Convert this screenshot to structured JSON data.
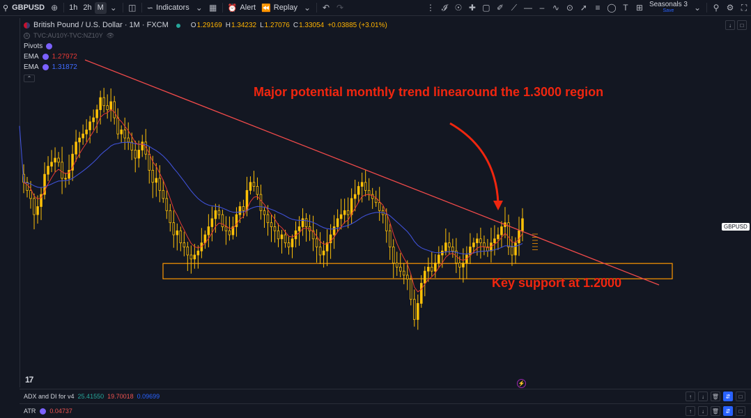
{
  "toolbar": {
    "symbol": "GBPUSD",
    "intervals": [
      "1h",
      "2h",
      "M"
    ],
    "indicators_label": "Indicators",
    "alert_label": "Alert",
    "replay_label": "Replay",
    "seasonals_label": "Seasonals 3",
    "seasonals_save": "Save"
  },
  "legend": {
    "title": "British Pound / U.S. Dollar · 1M · FXCM",
    "open_label": "O",
    "open": "1.29169",
    "high_label": "H",
    "high": "1.34232",
    "low_label": "L",
    "low": "1.27076",
    "close_label": "C",
    "close": "1.33054",
    "change": "+0.03885 (+3.01%)",
    "compare": "TVC:AU10Y-TVC:NZ10Y",
    "pivots_label": "Pivots",
    "ema1_label": "EMA",
    "ema1_value": "1.27972",
    "ema2_label": "EMA",
    "ema2_value": "1.31872"
  },
  "annotations": {
    "trendline_text": "Major potential monthly trend linearound the 1.3000 region",
    "support_text": "Key support at 1.2000"
  },
  "price_tag": "GBPUSD",
  "panes": {
    "adx_label": "ADX and DI for v4",
    "adx_v1": "25.41550",
    "adx_v2": "19.70018",
    "adx_v3": "0.09699",
    "atr_label": "ATR",
    "atr_value": "0.04737"
  },
  "colors": {
    "background": "#131722",
    "candle": "#ffc107",
    "ema_fast": "#e53935",
    "ema_slow": "#3f51d6",
    "trendline": "#f04a4a",
    "support_box": "#ff9800",
    "annotation": "#f0260f"
  },
  "chart_data": {
    "type": "candlestick",
    "symbol": "GBPUSD",
    "timeframe": "1M",
    "close_series": [
      1.42,
      1.4,
      1.38,
      1.34,
      1.36,
      1.39,
      1.44,
      1.46,
      1.47,
      1.48,
      1.47,
      1.43,
      1.43,
      1.45,
      1.49,
      1.52,
      1.53,
      1.54,
      1.55,
      1.57,
      1.58,
      1.6,
      1.63,
      1.61,
      1.6,
      1.62,
      1.58,
      1.54,
      1.55,
      1.53,
      1.52,
      1.5,
      1.48,
      1.5,
      1.52,
      1.49,
      1.45,
      1.42,
      1.43,
      1.4,
      1.38,
      1.35,
      1.32,
      1.29,
      1.3,
      1.27,
      1.26,
      1.24,
      1.23,
      1.24,
      1.25,
      1.27,
      1.29,
      1.31,
      1.33,
      1.35,
      1.34,
      1.31,
      1.3,
      1.29,
      1.31,
      1.34,
      1.36,
      1.35,
      1.4,
      1.42,
      1.41,
      1.39,
      1.35,
      1.34,
      1.32,
      1.31,
      1.3,
      1.28,
      1.29,
      1.27,
      1.26,
      1.28,
      1.3,
      1.31,
      1.33,
      1.31,
      1.3,
      1.28,
      1.26,
      1.24,
      1.25,
      1.27,
      1.29,
      1.31,
      1.33,
      1.34,
      1.35,
      1.34,
      1.38,
      1.39,
      1.41,
      1.42,
      1.4,
      1.39,
      1.38,
      1.37,
      1.35,
      1.34,
      1.3,
      1.26,
      1.22,
      1.21,
      1.2,
      1.19,
      1.18,
      1.13,
      1.08,
      1.12,
      1.17,
      1.2,
      1.21,
      1.2,
      1.22,
      1.24,
      1.25,
      1.27,
      1.26,
      1.25,
      1.22,
      1.21,
      1.22,
      1.24,
      1.26,
      1.27,
      1.28,
      1.27,
      1.26,
      1.25,
      1.27,
      1.28,
      1.29,
      1.31,
      1.32,
      1.26,
      1.24,
      1.27,
      1.3,
      1.33
    ],
    "trendline": {
      "start_price": 1.72,
      "end_price": 1.2
    },
    "support_level": 1.2
  }
}
